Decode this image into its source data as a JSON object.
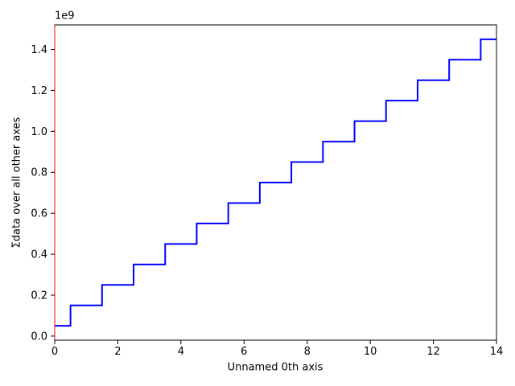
{
  "figure": {
    "background": "#ffffff"
  },
  "chart_data": {
    "type": "line",
    "line_style": "step-mid",
    "title": "",
    "xlabel": "Unnamed 0th axis",
    "ylabel": "Σdata over all other axes",
    "offset_text": "1e9",
    "x": [
      0,
      1,
      2,
      3,
      4,
      5,
      6,
      7,
      8,
      9,
      10,
      11,
      12,
      13,
      14
    ],
    "y": [
      50000000,
      150000000,
      250000000,
      350000000,
      450000000,
      550000000,
      650000000,
      750000000,
      850000000,
      950000000,
      1050000000,
      1150000000,
      1250000000,
      1350000000,
      1450000000
    ],
    "xlim": [
      0,
      14
    ],
    "ylim": [
      -20000000,
      1520000000
    ],
    "x_ticks": {
      "values": [
        0,
        2,
        4,
        6,
        8,
        10,
        12,
        14
      ],
      "labels": [
        "0",
        "2",
        "4",
        "6",
        "8",
        "10",
        "12",
        "14"
      ]
    },
    "y_ticks": {
      "values": [
        0,
        200000000,
        400000000,
        600000000,
        800000000,
        1000000000,
        1200000000,
        1400000000
      ],
      "labels": [
        "0.0",
        "0.2",
        "0.4",
        "0.6",
        "0.8",
        "1.0",
        "1.2",
        "1.4"
      ]
    },
    "line_color": "#0000ff",
    "tick_color": "#000000",
    "text_color": "#000000",
    "spine_colors": {
      "left": "#ff0000",
      "right": "#000000",
      "top": "#000000",
      "bottom": "#000000"
    },
    "grid": false,
    "legend": null
  }
}
